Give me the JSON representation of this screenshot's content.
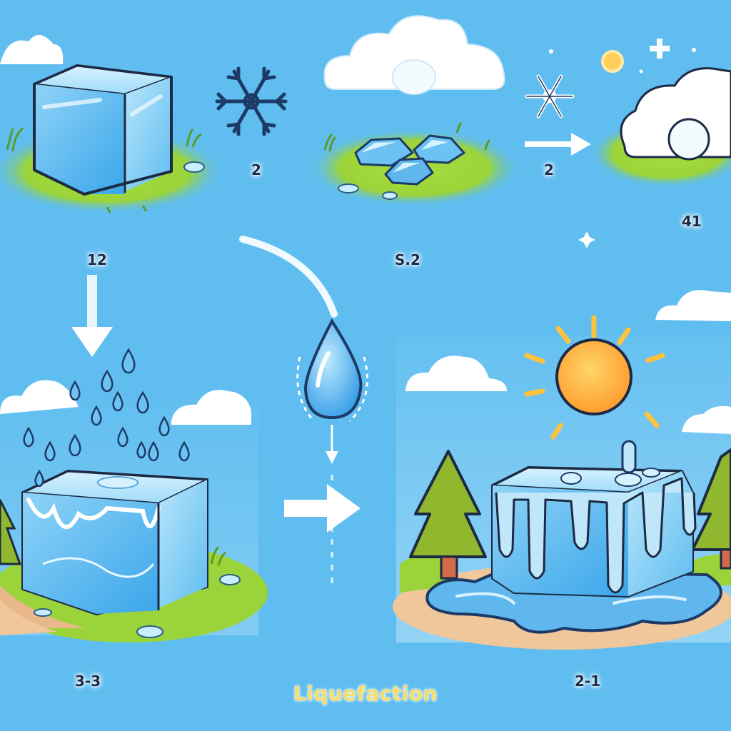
{
  "title": "Liquefaction",
  "step_labels": {
    "top_ice_cube": "2",
    "top_cloud_scene": "2",
    "top_right_number": "41",
    "left_arrow_label": "12",
    "middle_label": "S.2",
    "bottom_left_label": "3-3",
    "bottom_right_label": "2-1"
  },
  "colors": {
    "sky": "#5fbdf0",
    "grass": "#9bd43a",
    "ice": "#6cc2f2",
    "ice_outline": "#1d2a44",
    "sun": "#ffb43a",
    "tree": "#8fb82e",
    "title_text": "#f4dd6a"
  },
  "icons": [
    "ice-cube",
    "snowflake-icon",
    "cloud-icon",
    "sun-icon",
    "water-drop-icon",
    "arrow-right-icon",
    "arrow-down-icon",
    "tree-icon"
  ]
}
